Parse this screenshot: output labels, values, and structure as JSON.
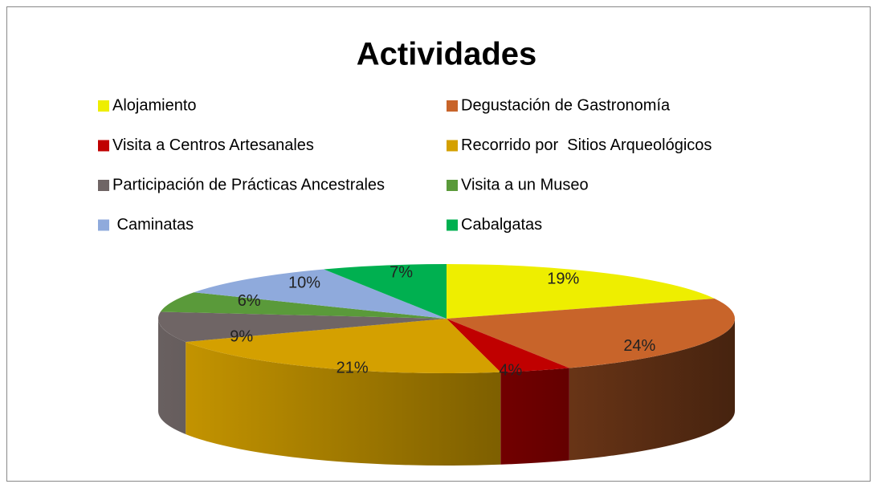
{
  "chart_data": {
    "type": "pie3d",
    "title": "Actividades",
    "categories": [
      "Alojamiento",
      "Degustación de Gastronomía",
      "Visita a Centros Artesanales",
      "Recorrido por  Sitios Arqueológicos",
      "Participación de Prácticas Ancestrales",
      "Visita a un Museo",
      " Caminatas",
      "Cabalgatas"
    ],
    "values": [
      19,
      24,
      4,
      21,
      9,
      6,
      10,
      7
    ],
    "value_labels": [
      "19%",
      "24%",
      "4%",
      "21%",
      "9%",
      "6%",
      "10%",
      "7%"
    ],
    "colors": [
      "#eeee00",
      "#c8642a",
      "#c00000",
      "#d4a000",
      "#6f6565",
      "#5a9a3a",
      "#8faadc",
      "#00b050"
    ],
    "legend_position": "top"
  }
}
